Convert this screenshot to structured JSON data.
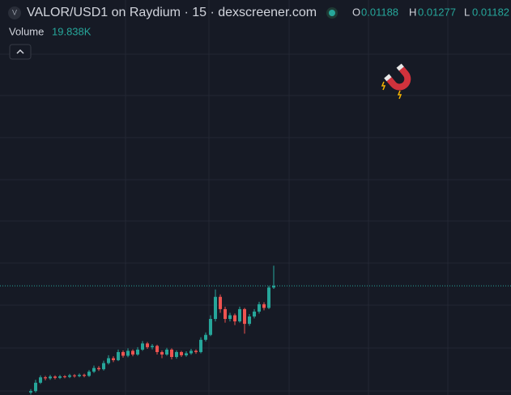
{
  "chart_data": {
    "type": "candlestick",
    "title": "VALOR/USD1 on Raydium · 15 · dexscreener.com",
    "symbol_badge": "V",
    "ohlc_labels": [
      "O",
      "H",
      "L"
    ],
    "volume_label": "Volume",
    "volume_value": "19.838K",
    "up_color": "#26a69a",
    "down_color": "#ef5350",
    "ylim": [
      0.0075,
      0.0236
    ],
    "open": [
      0.0076,
      0.00766,
      0.008,
      0.00822,
      0.00818,
      0.00825,
      0.0082,
      0.00826,
      0.00824,
      0.0083,
      0.00827,
      0.00832,
      0.00828,
      0.00845,
      0.0086,
      0.00855,
      0.0088,
      0.009,
      0.00892,
      0.00925,
      0.0091,
      0.0093,
      0.00915,
      0.00935,
      0.0096,
      0.00945,
      0.0095,
      0.00925,
      0.00915,
      0.00935,
      0.00905,
      0.00925,
      0.00912,
      0.0092,
      0.0093,
      0.00925,
      0.00975,
      0.00995,
      0.0106,
      0.0115,
      0.011,
      0.0106,
      0.01075,
      0.0105,
      0.011,
      0.0104,
      0.0107,
      0.0109,
      0.0112,
      0.01105,
      0.01188
    ],
    "high": [
      0.00774,
      0.00812,
      0.0083,
      0.00828,
      0.00832,
      0.0083,
      0.00832,
      0.00831,
      0.00836,
      0.00835,
      0.00838,
      0.00837,
      0.00852,
      0.0087,
      0.00868,
      0.0089,
      0.00912,
      0.00908,
      0.00935,
      0.00932,
      0.0094,
      0.00936,
      0.00945,
      0.0097,
      0.00966,
      0.00958,
      0.00955,
      0.00932,
      0.00942,
      0.0094,
      0.00932,
      0.0093,
      0.00928,
      0.00938,
      0.00936,
      0.00985,
      0.01005,
      0.01075,
      0.0118,
      0.0116,
      0.0111,
      0.01085,
      0.01082,
      0.0111,
      0.01105,
      0.0108,
      0.011,
      0.0113,
      0.01128,
      0.01195,
      0.01277
    ],
    "low": [
      0.00752,
      0.0076,
      0.00795,
      0.0081,
      0.00812,
      0.00814,
      0.00815,
      0.00818,
      0.00819,
      0.00821,
      0.00822,
      0.00822,
      0.00824,
      0.0084,
      0.00848,
      0.0085,
      0.00874,
      0.00884,
      0.00888,
      0.00902,
      0.00904,
      0.00908,
      0.0091,
      0.0093,
      0.00938,
      0.00936,
      0.00915,
      0.009,
      0.0091,
      0.00895,
      0.00898,
      0.00905,
      0.00906,
      0.00914,
      0.00918,
      0.0092,
      0.00968,
      0.0099,
      0.0105,
      0.01085,
      0.01045,
      0.0105,
      0.01035,
      0.01045,
      0.01,
      0.01032,
      0.01062,
      0.01082,
      0.01095,
      0.011,
      0.01182
    ],
    "close": [
      0.00766,
      0.008,
      0.00822,
      0.00818,
      0.00825,
      0.0082,
      0.00826,
      0.00824,
      0.0083,
      0.00827,
      0.00832,
      0.00828,
      0.00845,
      0.0086,
      0.00855,
      0.0088,
      0.009,
      0.00892,
      0.00925,
      0.0091,
      0.0093,
      0.00915,
      0.00935,
      0.0096,
      0.00945,
      0.0095,
      0.00925,
      0.00915,
      0.00935,
      0.00905,
      0.00925,
      0.00912,
      0.0092,
      0.0093,
      0.00925,
      0.00975,
      0.00995,
      0.0106,
      0.0115,
      0.011,
      0.0106,
      0.01075,
      0.0105,
      0.011,
      0.0104,
      0.0107,
      0.0109,
      0.0112,
      0.01105,
      0.01188,
      0.01195
    ]
  }
}
